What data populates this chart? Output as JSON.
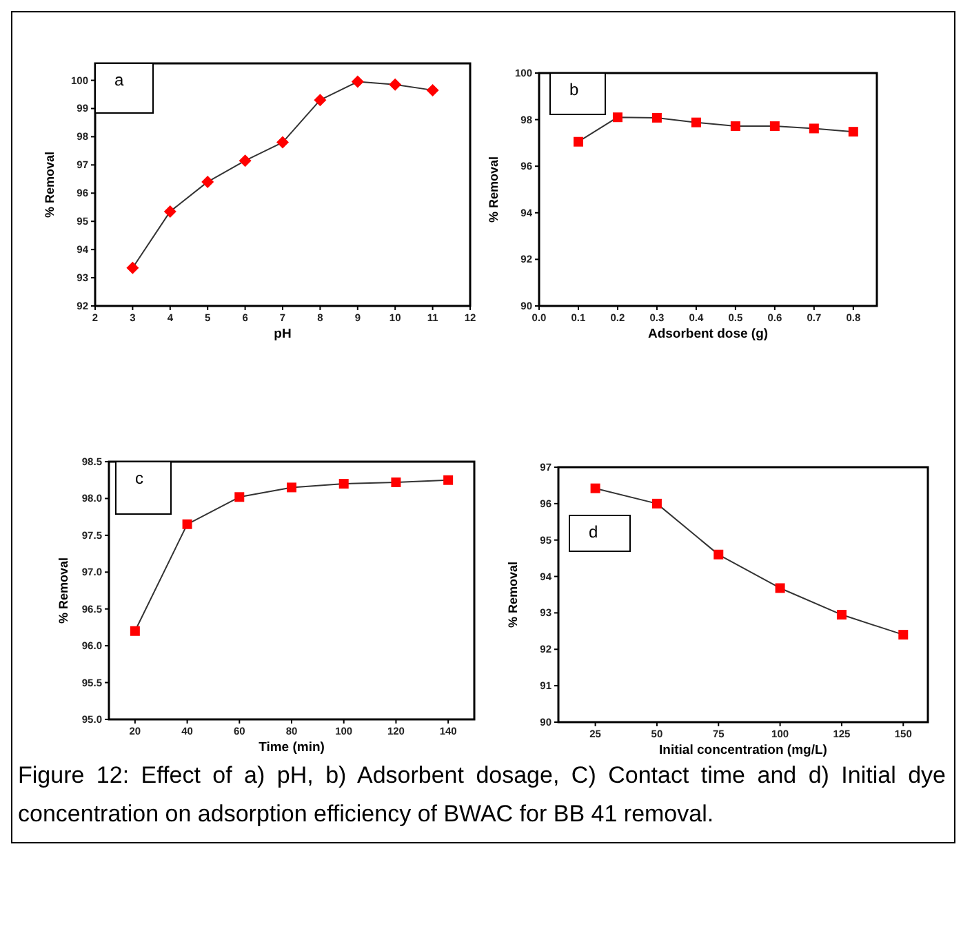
{
  "chart_data": [
    {
      "type": "line",
      "xlabel": "pH",
      "ylabel": "% Removal",
      "annotations": [
        "a"
      ],
      "x": [
        3,
        4,
        5,
        6,
        7,
        8,
        9,
        10,
        11
      ],
      "xlim": [
        2,
        12
      ],
      "xticks": [
        2,
        3,
        4,
        5,
        6,
        7,
        8,
        9,
        10,
        11,
        12
      ],
      "ylim": [
        92,
        100.6
      ],
      "yticks": [
        92,
        93,
        94,
        95,
        96,
        97,
        98,
        99,
        100
      ],
      "marker": "diamond",
      "series": [
        {
          "color": "#ff0000",
          "values": [
            93.35,
            95.35,
            96.4,
            97.15,
            97.8,
            99.3,
            99.95,
            99.85,
            99.65
          ]
        }
      ]
    },
    {
      "type": "line",
      "xlabel": "Adsorbent dose (g)",
      "ylabel": "% Removal",
      "annotations": [
        "b"
      ],
      "x": [
        0.1,
        0.2,
        0.3,
        0.4,
        0.5,
        0.6,
        0.7,
        0.8
      ],
      "xlim": [
        0,
        0.86
      ],
      "xticks": [
        {
          "value": 0,
          "label": "0.0"
        },
        0.1,
        0.2,
        0.3,
        0.4,
        0.5,
        0.6,
        0.7,
        0.8
      ],
      "ylim": [
        90,
        100
      ],
      "yticks": [
        90,
        92,
        94,
        96,
        98,
        100
      ],
      "marker": "square",
      "series": [
        {
          "color": "#ff0000",
          "values": [
            97.05,
            98.1,
            98.08,
            97.88,
            97.72,
            97.72,
            97.62,
            97.48
          ]
        }
      ]
    },
    {
      "type": "line",
      "xlabel": "Time (min)",
      "ylabel": "% Removal",
      "annotations": [
        "c"
      ],
      "x": [
        20,
        40,
        60,
        80,
        100,
        120,
        140
      ],
      "xlim": [
        10,
        150
      ],
      "xticks": [
        20,
        40,
        60,
        80,
        100,
        120,
        140
      ],
      "ylim": [
        95,
        98.5
      ],
      "yticks": [
        {
          "value": 95,
          "label": "95.0"
        },
        95.5,
        {
          "value": 96,
          "label": "96.0"
        },
        96.5,
        {
          "value": 97,
          "label": "97.0"
        },
        97.5,
        {
          "value": 98,
          "label": "98.0"
        },
        98.5
      ],
      "marker": "square",
      "series": [
        {
          "color": "#ff0000",
          "values": [
            96.2,
            97.65,
            98.02,
            98.15,
            98.2,
            98.22,
            98.25
          ]
        }
      ]
    },
    {
      "type": "line",
      "xlabel": "Initial concentration (mg/L)",
      "ylabel": "% Removal",
      "annotations": [
        "d",
        "Figure 12: Effect of a) pH, b) Adsorbent dosage, C) Contact time and d) Initial dye concentration on adsorption efficiency of BWAC for BB 41 removal."
      ],
      "x": [
        25,
        50,
        75,
        100,
        125,
        150
      ],
      "xlim": [
        10,
        160
      ],
      "xticks": [
        25,
        50,
        75,
        100,
        125,
        150
      ],
      "ylim": [
        90,
        97
      ],
      "yticks": [
        90,
        91,
        92,
        93,
        94,
        95,
        96,
        97
      ],
      "marker": "square",
      "series": [
        {
          "color": "#ff0000",
          "values": [
            96.42,
            96.0,
            94.6,
            93.68,
            92.95,
            92.4
          ]
        }
      ]
    }
  ]
}
